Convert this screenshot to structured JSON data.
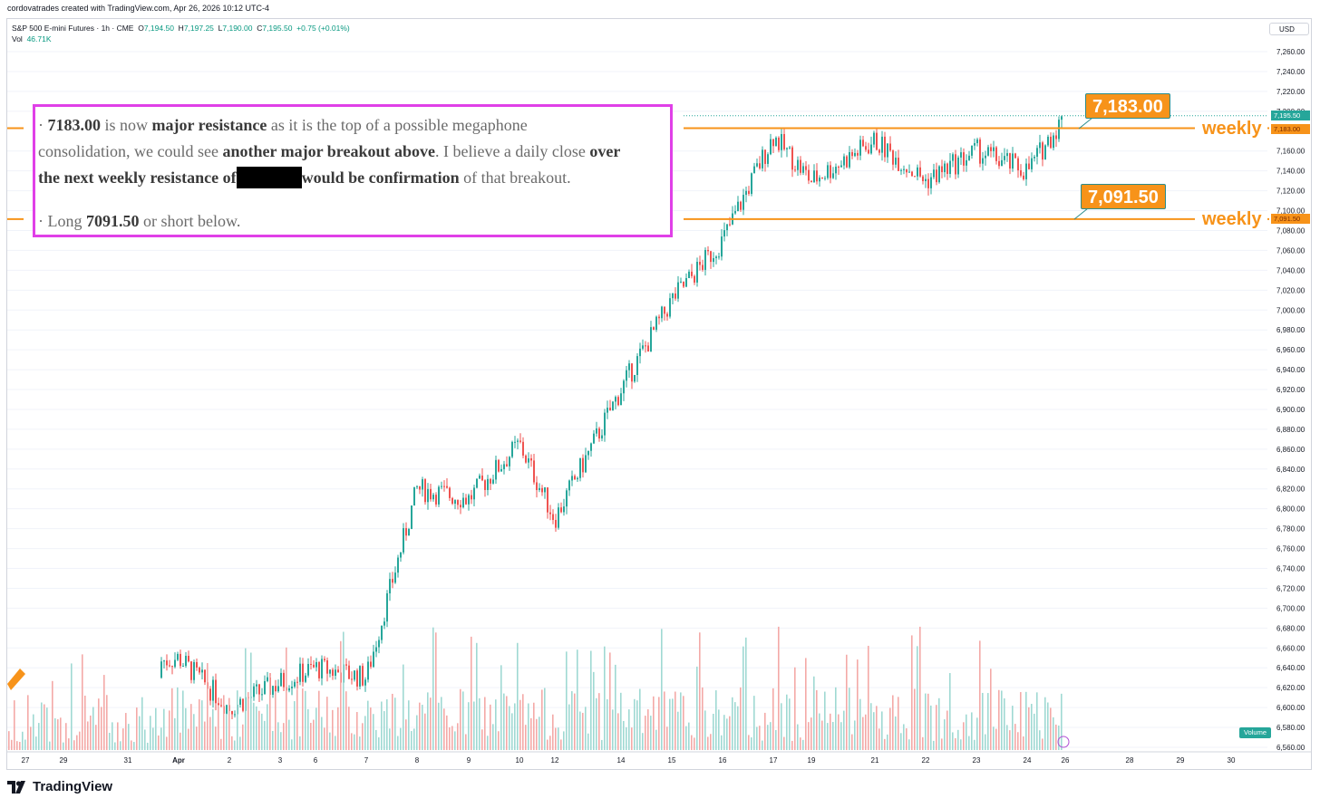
{
  "attribution": "cordovatrades created with TradingView.com, Apr 26, 2026 10:12 UTC-4",
  "legend": {
    "symbol": "S&P 500 E-mini Futures · 1h · CME",
    "open_label": "O",
    "open": "7,194.50",
    "high_label": "H",
    "high": "7,197.25",
    "low_label": "L",
    "low": "7,190.00",
    "close_label": "C",
    "close": "7,195.50",
    "change": "+0.75 (+0.01%)",
    "vol_label": "Vol",
    "vol": "46.71K"
  },
  "currency": "USD",
  "annotation": {
    "line1_a": "· ",
    "line1_b": "7183.00",
    "line1_c": " is now ",
    "line1_d": "major resistance",
    "line1_e": " as it is the top of a possible megaphone",
    "line2_a": "consolidation, we could see ",
    "line2_b": "another major breakout above",
    "line2_c": ". I believe a daily close ",
    "line2_d": "over",
    "line3_a": "the next weekly resistance of",
    "line3_b": "would be confirmation",
    "line3_c": " of that breakout.",
    "line4_a": "· Long ",
    "line4_b": "7091.50",
    "line4_c": " or short below."
  },
  "callouts": {
    "resistance": "7,183.00",
    "support": "7,091.50",
    "weekly_top": "weekly",
    "weekly_bottom": "weekly"
  },
  "price_tags": {
    "last": "7,195.50",
    "resistance": "7,183.00",
    "support": "7,091.50"
  },
  "volume_tag": "Volume",
  "footer": {
    "brand": "TradingView"
  },
  "colors": {
    "up": "#26a69a",
    "down": "#ef5350",
    "level": "#f7931a",
    "annotation_border": "#e040e8",
    "grid": "#f0f3fa"
  },
  "chart_data": {
    "type": "candlestick",
    "title": "S&P 500 E-mini Futures · 1h · CME",
    "ylim": [
      6550,
      7280
    ],
    "y_ticks": [
      "7,260.00",
      "7,240.00",
      "7,220.00",
      "7,200.00",
      "7,160.00",
      "7,140.00",
      "7,120.00",
      "7,100.00",
      "7,080.00",
      "7,060.00",
      "7,040.00",
      "7,020.00",
      "7,000.00",
      "6,980.00",
      "6,960.00",
      "6,940.00",
      "6,920.00",
      "6,900.00",
      "6,880.00",
      "6,860.00",
      "6,840.00",
      "6,820.00",
      "6,800.00",
      "6,780.00",
      "6,760.00",
      "6,740.00",
      "6,720.00",
      "6,700.00",
      "6,680.00",
      "6,660.00",
      "6,640.00",
      "6,620.00",
      "6,600.00",
      "6,580.00",
      "6,560.00"
    ],
    "x_ticks": [
      "27",
      "29",
      "31",
      "Apr",
      "2",
      "3",
      "6",
      "7",
      "8",
      "9",
      "10",
      "12",
      "14",
      "15",
      "16",
      "17",
      "19",
      "21",
      "22",
      "23",
      "24",
      "26",
      "28",
      "29",
      "30"
    ],
    "horizontal_levels": [
      7183.0,
      7091.5
    ],
    "price_path": [
      {
        "x": "29",
        "y": 6630
      },
      {
        "x": "31",
        "y": 6640
      },
      {
        "x": "Apr",
        "y": 6650
      },
      {
        "x": "2",
        "y": 6600
      },
      {
        "x": "3",
        "y": 6625
      },
      {
        "x": "6",
        "y": 6640
      },
      {
        "x": "7",
        "y": 6630
      },
      {
        "x": "8",
        "y": 6820
      },
      {
        "x": "9",
        "y": 6810
      },
      {
        "x": "10",
        "y": 6865
      },
      {
        "x": "12",
        "y": 6790
      },
      {
        "x": "14",
        "y": 6920
      },
      {
        "x": "15",
        "y": 7010
      },
      {
        "x": "16",
        "y": 7070
      },
      {
        "x": "17",
        "y": 7175
      },
      {
        "x": "19",
        "y": 7130
      },
      {
        "x": "21",
        "y": 7170
      },
      {
        "x": "22",
        "y": 7130
      },
      {
        "x": "23",
        "y": 7160
      },
      {
        "x": "24",
        "y": 7140
      },
      {
        "x": "26",
        "y": 7195.5
      }
    ]
  }
}
